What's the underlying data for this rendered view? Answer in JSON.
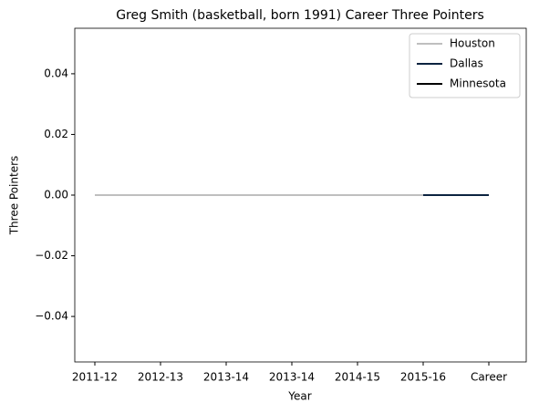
{
  "chart_data": {
    "type": "line",
    "title": "Greg Smith (basketball, born 1991) Career Three Pointers",
    "x_label": "Year",
    "y_label": "Three Pointers",
    "categories": [
      "2011-12",
      "2012-13",
      "2013-14",
      "2013-14",
      "2014-15",
      "2015-16",
      "Career"
    ],
    "series": [
      {
        "name": "Houston",
        "color": "#bfbfbf",
        "values": [
          0,
          0,
          0,
          0,
          0,
          0,
          null
        ]
      },
      {
        "name": "Dallas",
        "color": "#0c2340",
        "values": [
          null,
          null,
          null,
          null,
          null,
          0,
          0
        ]
      },
      {
        "name": "Minnesota",
        "color": "#000000",
        "values": [
          null,
          null,
          null,
          0,
          null,
          null,
          null
        ]
      }
    ],
    "ylim": [
      -0.055,
      0.055
    ],
    "yticks": [
      {
        "value": -0.04,
        "label": "−0.04"
      },
      {
        "value": -0.02,
        "label": "−0.02"
      },
      {
        "value": 0,
        "label": "0.00"
      },
      {
        "value": 0.02,
        "label": "0.02"
      },
      {
        "value": 0.04,
        "label": "0.04"
      }
    ],
    "legend": "upper right",
    "grid": false
  }
}
